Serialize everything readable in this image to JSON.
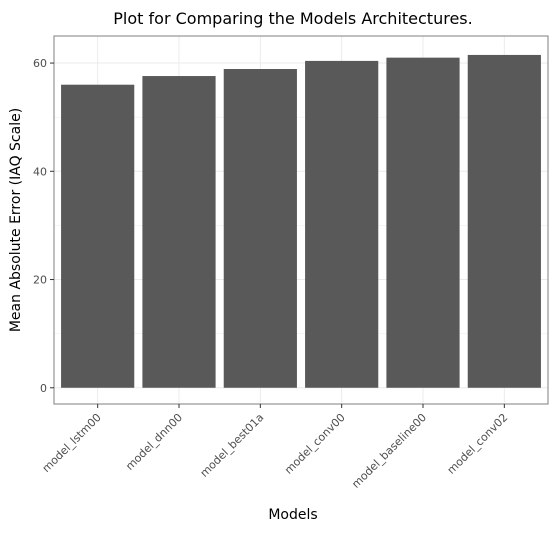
{
  "chart_data": {
    "type": "bar",
    "title": "Plot for Comparing the Models Architectures.",
    "xlabel": "Models",
    "ylabel": "Mean Absolute Error (IAQ Scale)",
    "categories": [
      "model_lstm00",
      "model_dnn00",
      "model_best01a",
      "model_conv00",
      "model_baseline00",
      "model_conv02"
    ],
    "values": [
      56.0,
      57.6,
      58.9,
      60.4,
      61.0,
      61.5
    ],
    "ylim": [
      -3,
      65
    ],
    "yticks": [
      "0",
      "20",
      "40",
      "60"
    ],
    "grid": true,
    "legend": "none",
    "bar_color": "#595959",
    "panel_border_color": "#7f7f7f",
    "grid_color": "#ebebeb"
  }
}
